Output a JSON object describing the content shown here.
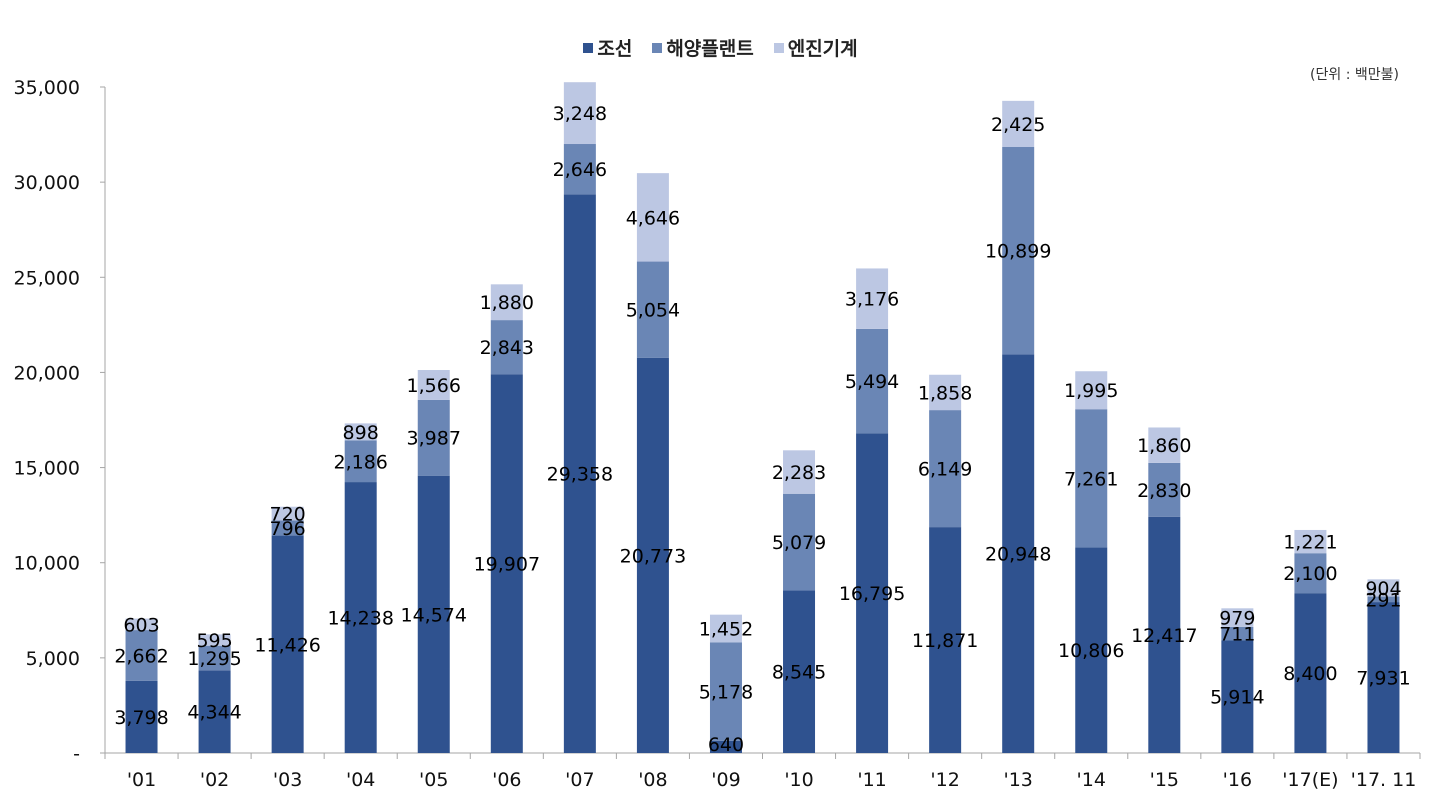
{
  "legend": {
    "items": [
      {
        "label": "조선",
        "color": "#2f528f"
      },
      {
        "label": "해양플랜트",
        "color": "#6a86b5"
      },
      {
        "label": "엔진기계",
        "color": "#bcc7e3"
      }
    ]
  },
  "unit_label": "(단위 : 백만불)",
  "chart_data": {
    "type": "bar",
    "stacked": true,
    "title": "",
    "xlabel": "",
    "ylabel": "",
    "unit": "(단위 : 백만불)",
    "ylim": [
      0,
      35000
    ],
    "yticks": [
      0,
      5000,
      10000,
      15000,
      20000,
      25000,
      30000,
      35000
    ],
    "ytick_labels": [
      "-",
      "5,000",
      "10,000",
      "15,000",
      "20,000",
      "25,000",
      "30,000",
      "35,000"
    ],
    "grid": false,
    "legend_position": "top",
    "categories": [
      "'01",
      "'02",
      "'03",
      "'04",
      "'05",
      "'06",
      "'07",
      "'08",
      "'09",
      "'10",
      "'11",
      "'12",
      "'13",
      "'14",
      "'15",
      "'16",
      "'17(E)",
      "'17. 11"
    ],
    "series": [
      {
        "name": "조선",
        "color": "#2f528f",
        "values": [
          3798,
          4344,
          11426,
          14238,
          14574,
          19907,
          29358,
          20773,
          640,
          8545,
          16795,
          11871,
          20948,
          10806,
          12417,
          5914,
          8400,
          7931
        ]
      },
      {
        "name": "해양플랜트",
        "color": "#6a86b5",
        "values": [
          2662,
          1295,
          796,
          2186,
          3987,
          2843,
          2646,
          5054,
          5178,
          5079,
          5494,
          6149,
          10899,
          7261,
          2830,
          711,
          2100,
          291
        ]
      },
      {
        "name": "엔진기계",
        "color": "#bcc7e3",
        "values": [
          603,
          595,
          720,
          898,
          1566,
          1880,
          3248,
          4646,
          1452,
          2283,
          3176,
          1858,
          2425,
          1995,
          1860,
          979,
          1221,
          904
        ]
      }
    ]
  }
}
